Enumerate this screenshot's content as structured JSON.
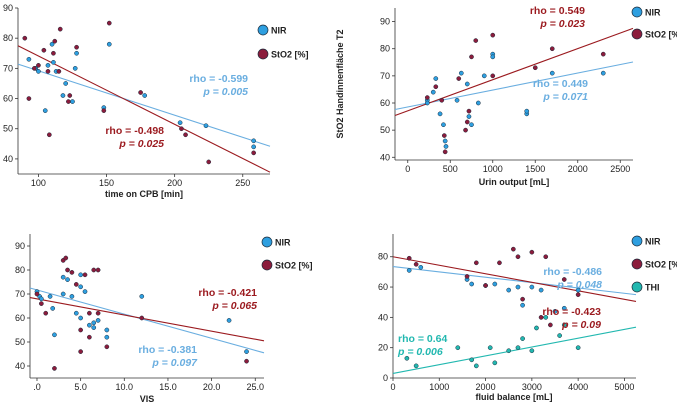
{
  "colors": {
    "blue": "#2e9fe0",
    "bordeaux": "#8b1c3c",
    "teal": "#22b8b0",
    "blueLine": "#6aaee0",
    "redLine": "#9b1a1f"
  },
  "chart_data": [
    {
      "type": "scatter",
      "title": "",
      "xlabel": "time on CPB [min]",
      "ylabel": "",
      "xlim": [
        85,
        270
      ],
      "ylim": [
        35,
        90
      ],
      "xticks": [
        {
          "v": 100,
          "t": "100"
        },
        {
          "v": 150,
          "t": "150"
        },
        {
          "v": 200,
          "t": "200"
        },
        {
          "v": 250,
          "t": "250"
        }
      ],
      "yticks": [
        {
          "v": 40,
          "t": "40"
        },
        {
          "v": 50,
          "t": "50"
        },
        {
          "v": 60,
          "t": "60"
        },
        {
          "v": 70,
          "t": "70"
        },
        {
          "v": 80,
          "t": "80"
        },
        {
          "v": 90,
          "t": "90"
        }
      ],
      "legend": [
        {
          "label": "NIR",
          "color": "#2e9fe0"
        },
        {
          "label": "StO2 [%]",
          "color": "#8b1c3c"
        }
      ],
      "series": [
        {
          "name": "NIR",
          "color": "#2e9fe0",
          "line_color": "#6aaee0",
          "points": [
            [
              93,
              73
            ],
            [
              98,
              70
            ],
            [
              100,
              69
            ],
            [
              105,
              56
            ],
            [
              107,
              71
            ],
            [
              110,
              78
            ],
            [
              111,
              72
            ],
            [
              113,
              69
            ],
            [
              118,
              61
            ],
            [
              120,
              65
            ],
            [
              125,
              59
            ],
            [
              127,
              70
            ],
            [
              128,
              75
            ],
            [
              148,
              57
            ],
            [
              152,
              78
            ],
            [
              178,
              61
            ],
            [
              204,
              52
            ],
            [
              223,
              51
            ],
            [
              258,
              46
            ],
            [
              258,
              44
            ]
          ],
          "fit": [
            [
              85,
              71.4
            ],
            [
              270,
              44.2
            ]
          ],
          "rho": "rho = -0.599",
          "p": "p = 0.005"
        },
        {
          "name": "StO2 [%]",
          "color": "#8b1c3c",
          "line_color": "#9b1a1f",
          "points": [
            [
              90,
              80
            ],
            [
              93,
              60
            ],
            [
              97,
              70
            ],
            [
              100,
              71
            ],
            [
              104,
              76
            ],
            [
              107,
              69
            ],
            [
              108,
              48
            ],
            [
              111,
              75
            ],
            [
              112,
              79
            ],
            [
              115,
              69
            ],
            [
              116,
              83
            ],
            [
              122,
              59
            ],
            [
              123,
              61
            ],
            [
              128,
              77
            ],
            [
              148,
              56
            ],
            [
              152,
              85
            ],
            [
              175,
              62
            ],
            [
              205,
              50
            ],
            [
              208,
              48
            ],
            [
              225,
              39
            ],
            [
              258,
              42
            ]
          ],
          "fit": [
            [
              85,
              77.5
            ],
            [
              270,
              35.6
            ]
          ],
          "rho": "rho = -0.498",
          "p": "p = 0.025"
        }
      ]
    },
    {
      "type": "scatter",
      "title": "",
      "xlabel": "Urin output [mL]",
      "ylabel": "StO2 Handinnenfläche T2",
      "xlim": [
        -150,
        2650
      ],
      "ylim": [
        39,
        95
      ],
      "xticks": [
        {
          "v": 0,
          "t": "0"
        },
        {
          "v": 500,
          "t": "500"
        },
        {
          "v": 1000,
          "t": "1000"
        },
        {
          "v": 1500,
          "t": "1500"
        },
        {
          "v": 2000,
          "t": "2000"
        },
        {
          "v": 2500,
          "t": "2500"
        }
      ],
      "yticks": [
        {
          "v": 40,
          "t": "40"
        },
        {
          "v": 50,
          "t": "50"
        },
        {
          "v": 60,
          "t": "60"
        },
        {
          "v": 70,
          "t": "70"
        },
        {
          "v": 80,
          "t": "80"
        },
        {
          "v": 90,
          "t": "90"
        }
      ],
      "legend": [
        {
          "label": "NIR",
          "color": "#2e9fe0"
        },
        {
          "label": "StO2 [%]",
          "color": "#8b1c3c"
        }
      ],
      "series": [
        {
          "name": "NIR",
          "color": "#2e9fe0",
          "line_color": "#6aaee0",
          "points": [
            [
              230,
              61
            ],
            [
              230,
              60
            ],
            [
              300,
              64
            ],
            [
              330,
              69
            ],
            [
              380,
              56
            ],
            [
              420,
              52
            ],
            [
              440,
              46
            ],
            [
              450,
              44
            ],
            [
              580,
              61
            ],
            [
              700,
              67
            ],
            [
              720,
              55
            ],
            [
              750,
              52
            ],
            [
              830,
              60
            ],
            [
              900,
              70
            ],
            [
              1000,
              78
            ],
            [
              1000,
              77
            ],
            [
              1400,
              56
            ],
            [
              1400,
              57
            ],
            [
              1700,
              71
            ],
            [
              2300,
              71
            ],
            [
              630,
              71
            ]
          ],
          "fit": [
            [
              -150,
              57.6
            ],
            [
              2650,
              75.1
            ]
          ],
          "rho": "rho = 0.449",
          "p": "p = 0.071"
        },
        {
          "name": "StO2 [%]",
          "color": "#8b1c3c",
          "line_color": "#9b1a1f",
          "points": [
            [
              230,
              62
            ],
            [
              330,
              66
            ],
            [
              400,
              61
            ],
            [
              430,
              48
            ],
            [
              440,
              42
            ],
            [
              680,
              50
            ],
            [
              700,
              53
            ],
            [
              720,
              57
            ],
            [
              750,
              77
            ],
            [
              800,
              83
            ],
            [
              1000,
              85
            ],
            [
              1000,
              70
            ],
            [
              1500,
              73
            ],
            [
              1700,
              80
            ],
            [
              2300,
              78
            ],
            [
              600,
              69
            ]
          ],
          "fit": [
            [
              -150,
              55.4
            ],
            [
              2650,
              87.5
            ]
          ],
          "rho": "rho = 0.549",
          "p": "p = 0.023"
        }
      ]
    },
    {
      "type": "scatter",
      "title": "",
      "xlabel": "VIS",
      "ylabel": "",
      "xlim": [
        -0.8,
        26
      ],
      "ylim": [
        35,
        95
      ],
      "xticks": [
        {
          "v": 0,
          "t": ".0"
        },
        {
          "v": 5,
          "t": "5.0"
        },
        {
          "v": 10,
          "t": "10.0"
        },
        {
          "v": 15,
          "t": "15.0"
        },
        {
          "v": 20,
          "t": "20.0"
        },
        {
          "v": 25,
          "t": "25.0"
        }
      ],
      "yticks": [
        {
          "v": 40,
          "t": "40"
        },
        {
          "v": 50,
          "t": "50"
        },
        {
          "v": 60,
          "t": "60"
        },
        {
          "v": 70,
          "t": "70"
        },
        {
          "v": 80,
          "t": "80"
        },
        {
          "v": 90,
          "t": "90"
        }
      ],
      "legend": [
        {
          "label": "NIR",
          "color": "#2e9fe0"
        },
        {
          "label": "StO2 [%]",
          "color": "#8b1c3c"
        }
      ],
      "series": [
        {
          "name": "NIR",
          "color": "#2e9fe0",
          "line_color": "#6aaee0",
          "points": [
            [
              0,
              71
            ],
            [
              0.3,
              69
            ],
            [
              0.5,
              68
            ],
            [
              1.5,
              69
            ],
            [
              1.8,
              64
            ],
            [
              2,
              53
            ],
            [
              3,
              77
            ],
            [
              3,
              70
            ],
            [
              3.5,
              76
            ],
            [
              4,
              69
            ],
            [
              4.5,
              62
            ],
            [
              5,
              78
            ],
            [
              5,
              73
            ],
            [
              5,
              60
            ],
            [
              5.5,
              71
            ],
            [
              6,
              57
            ],
            [
              6.5,
              58
            ],
            [
              6.5,
              56
            ],
            [
              7,
              59
            ],
            [
              8,
              55
            ],
            [
              8,
              52
            ],
            [
              12,
              69
            ],
            [
              22,
              59
            ],
            [
              24,
              46
            ]
          ],
          "fit": [
            [
              -0.8,
              72.5
            ],
            [
              26,
              45.5
            ]
          ],
          "rho": "rho = -0.381",
          "p": "p = 0.097"
        },
        {
          "name": "StO2 [%]",
          "color": "#8b1c3c",
          "line_color": "#9b1a1f",
          "points": [
            [
              0,
              70
            ],
            [
              0.5,
              66
            ],
            [
              1,
              62
            ],
            [
              2,
              39
            ],
            [
              3,
              84
            ],
            [
              3.3,
              85
            ],
            [
              3.5,
              80
            ],
            [
              4,
              79
            ],
            [
              4.5,
              74
            ],
            [
              5,
              55
            ],
            [
              5,
              46
            ],
            [
              5.5,
              78
            ],
            [
              6,
              62
            ],
            [
              6,
              52
            ],
            [
              6.5,
              80
            ],
            [
              7,
              80
            ],
            [
              7,
              62
            ],
            [
              8,
              48
            ],
            [
              12,
              60
            ],
            [
              24,
              42
            ]
          ],
          "fit": [
            [
              -0.8,
              68.5
            ],
            [
              26,
              50.5
            ]
          ],
          "rho": "rho = -0.421",
          "p": "p = 0.065"
        }
      ]
    },
    {
      "type": "scatter",
      "title": "",
      "xlabel": "fluid balance [mL]",
      "ylabel": "",
      "xlim": [
        0,
        5250
      ],
      "ylim": [
        0,
        95
      ],
      "xticks": [
        {
          "v": 0,
          "t": "0"
        },
        {
          "v": 1000,
          "t": "1000"
        },
        {
          "v": 2000,
          "t": "2000"
        },
        {
          "v": 3000,
          "t": "3000"
        },
        {
          "v": 4000,
          "t": "4000"
        },
        {
          "v": 5000,
          "t": "5000"
        }
      ],
      "yticks": [
        {
          "v": 0,
          "t": "0"
        },
        {
          "v": 20,
          "t": "20"
        },
        {
          "v": 40,
          "t": "40"
        },
        {
          "v": 60,
          "t": "60"
        },
        {
          "v": 80,
          "t": "80"
        }
      ],
      "legend": [
        {
          "label": "NIR",
          "color": "#2e9fe0"
        },
        {
          "label": "StO2 [%]",
          "color": "#8b1c3c"
        },
        {
          "label": "THI",
          "color": "#22b8b0"
        }
      ],
      "series": [
        {
          "name": "NIR",
          "color": "#2e9fe0",
          "line_color": "#6aaee0",
          "points": [
            [
              350,
              71
            ],
            [
              600,
              73
            ],
            [
              1600,
              65
            ],
            [
              1700,
              62
            ],
            [
              2000,
              61
            ],
            [
              2200,
              62
            ],
            [
              2500,
              58
            ],
            [
              2700,
              60
            ],
            [
              2800,
              48
            ],
            [
              3000,
              60
            ],
            [
              3200,
              58
            ],
            [
              3500,
              44
            ],
            [
              3700,
              46
            ],
            [
              4000,
              58
            ]
          ],
          "fit": [
            [
              0,
              73.5
            ],
            [
              5250,
              55.0
            ]
          ],
          "rho": "rho = -0.486",
          "p": "p = 0.048"
        },
        {
          "name": "StO2 [%]",
          "color": "#8b1c3c",
          "line_color": "#9b1a1f",
          "points": [
            [
              350,
              79
            ],
            [
              500,
              75
            ],
            [
              1600,
              67
            ],
            [
              1800,
              76
            ],
            [
              2000,
              61
            ],
            [
              2300,
              76
            ],
            [
              2600,
              85
            ],
            [
              2700,
              80
            ],
            [
              2800,
              52
            ],
            [
              3000,
              83
            ],
            [
              3200,
              40
            ],
            [
              3400,
              35
            ],
            [
              3700,
              65
            ],
            [
              3300,
              80
            ],
            [
              4000,
              55
            ]
          ],
          "fit": [
            [
              0,
              80.0
            ],
            [
              5250,
              50.5
            ]
          ],
          "rho": "rho = -0.423",
          "p": "p = 0.09"
        },
        {
          "name": "THI",
          "color": "#22b8b0",
          "line_color": "#22b8b0",
          "points": [
            [
              300,
              13
            ],
            [
              500,
              8
            ],
            [
              1400,
              20
            ],
            [
              1700,
              12
            ],
            [
              1800,
              8
            ],
            [
              2100,
              20
            ],
            [
              2200,
              10
            ],
            [
              2500,
              18
            ],
            [
              2700,
              20
            ],
            [
              2800,
              26
            ],
            [
              3000,
              18
            ],
            [
              3100,
              33
            ],
            [
              3300,
              40
            ],
            [
              3600,
              28
            ],
            [
              3700,
              35
            ],
            [
              4000,
              20
            ]
          ],
          "fit": [
            [
              0,
              3
            ],
            [
              5250,
              33.5
            ]
          ],
          "rho": "rho = 0.64",
          "p": "p = 0.006"
        }
      ]
    }
  ]
}
